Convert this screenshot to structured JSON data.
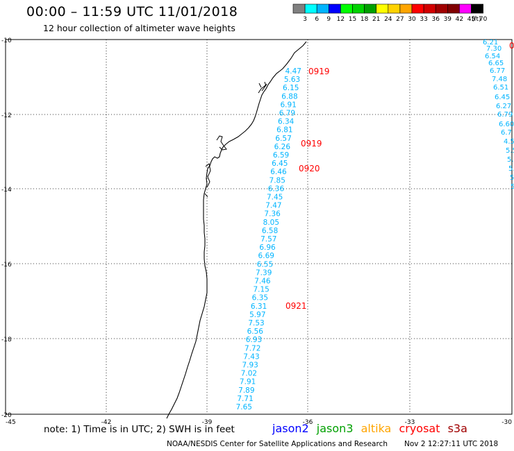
{
  "header": {
    "title": "00:00 – 11:59 UTC 11/01/2018",
    "subtitle": "12 hour collection of altimeter wave heights"
  },
  "legend": {
    "unit": "(ft)",
    "labels": [
      "3",
      "6",
      "9",
      "12",
      "15",
      "18",
      "21",
      "24",
      "27",
      "30",
      "33",
      "36",
      "39",
      "42",
      "45",
      "70"
    ],
    "colors": [
      "#808080",
      "#00ffff",
      "#00b4ff",
      "#0000ff",
      "#00ff00",
      "#00d200",
      "#00a000",
      "#ffff00",
      "#ffd200",
      "#ffa500",
      "#ff0000",
      "#d20000",
      "#a00000",
      "#800000",
      "#ff00ff",
      "#000000"
    ]
  },
  "axes": {
    "lat_labels": [
      "-10",
      "-12",
      "-14",
      "-16",
      "-18",
      "-20"
    ],
    "lon_labels": [
      "-45",
      "-42",
      "-39",
      "-36",
      "-33",
      "-30"
    ]
  },
  "track": {
    "color": "#00b4ff",
    "values": [
      "4.47",
      "5.63",
      "6.15",
      "6.88",
      "6.91",
      "6.79",
      "6.34",
      "6.81",
      "6.57",
      "6.26",
      "6.59",
      "6.45",
      "6.46",
      "7.85",
      "6.36",
      "7.45",
      "7.47",
      "7.36",
      "8.05",
      "6.58",
      "7.57",
      "6.96",
      "6.69",
      "6.55",
      "7.39",
      "7.46",
      "7.15",
      "6.35",
      "6.31",
      "5.97",
      "7.53",
      "6.56",
      "6.93",
      "7.72",
      "7.43",
      "7.93",
      "7.02",
      "7.91",
      "7.89",
      "7.71",
      "7.65"
    ]
  },
  "time_labels": {
    "color": "#ff0000",
    "items": [
      "0919",
      "0919",
      "0920",
      "0921"
    ]
  },
  "footer": {
    "note": "note: 1) Time is in UTC; 2) SWH is in feet",
    "satellites": [
      {
        "name": "jason2",
        "color": "#0000ff"
      },
      {
        "name": "jason3",
        "color": "#00a000"
      },
      {
        "name": "altika",
        "color": "#ffa500"
      },
      {
        "name": "cryosat",
        "color": "#ff0000"
      },
      {
        "name": "s3a",
        "color": "#a00000"
      }
    ],
    "credit": "NOAA/NESDIS Center for Satellite Applications and Research",
    "timestamp": "Nov  2 12:27:11 UTC 2018"
  }
}
